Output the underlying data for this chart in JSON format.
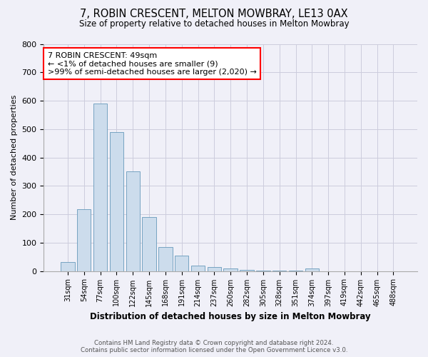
{
  "title_line1": "7, ROBIN CRESCENT, MELTON MOWBRAY, LE13 0AX",
  "title_line2": "Size of property relative to detached houses in Melton Mowbray",
  "xlabel": "Distribution of detached houses by size in Melton Mowbray",
  "ylabel": "Number of detached properties",
  "categories": [
    "31sqm",
    "54sqm",
    "77sqm",
    "100sqm",
    "122sqm",
    "145sqm",
    "168sqm",
    "191sqm",
    "214sqm",
    "237sqm",
    "260sqm",
    "282sqm",
    "305sqm",
    "328sqm",
    "351sqm",
    "374sqm",
    "397sqm",
    "419sqm",
    "442sqm",
    "465sqm",
    "488sqm"
  ],
  "values": [
    32,
    218,
    590,
    490,
    350,
    190,
    85,
    55,
    20,
    15,
    10,
    5,
    2,
    2,
    2,
    8,
    0,
    0,
    0,
    0,
    0
  ],
  "bar_color": "#ccdcec",
  "bar_edge_color": "#6699bb",
  "annotation_text": "7 ROBIN CRESCENT: 49sqm\n← <1% of detached houses are smaller (9)\n>99% of semi-detached houses are larger (2,020) →",
  "annotation_box_color": "white",
  "annotation_box_edge": "red",
  "ylim": [
    0,
    800
  ],
  "yticks": [
    0,
    100,
    200,
    300,
    400,
    500,
    600,
    700,
    800
  ],
  "footer_line1": "Contains HM Land Registry data © Crown copyright and database right 2024.",
  "footer_line2": "Contains public sector information licensed under the Open Government Licence v3.0.",
  "background_color": "#f0f0f8",
  "grid_color": "#ccccdd"
}
